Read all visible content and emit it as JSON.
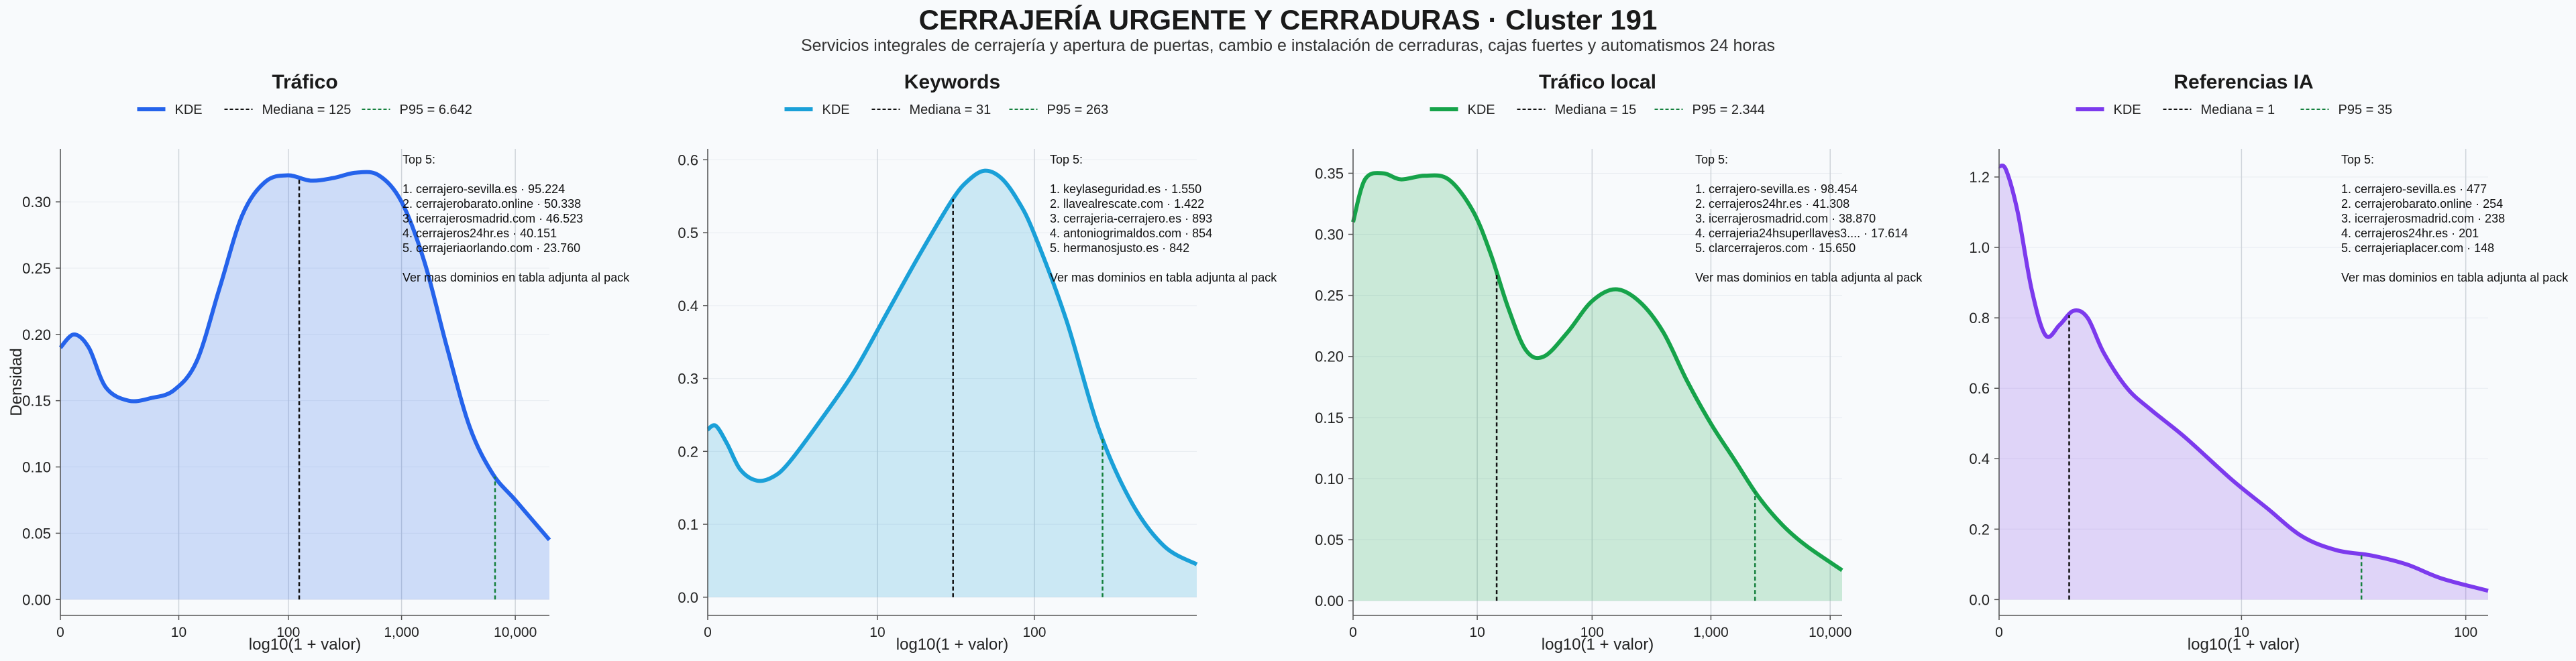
{
  "header": {
    "title": "CERRAJERÍA URGENTE Y CERRADURAS · Cluster 191",
    "subtitle": "Servicios integrales de cerrajería y apertura de puertas, cambio e instalación de cerraduras, cajas fuertes y automatismos 24 horas"
  },
  "colors": {
    "trafico": "#2563eb",
    "keywords": "#1aa0d8",
    "trafico_local": "#16a34a",
    "referencias_ia": "#7c3aed",
    "mediana": "#111111",
    "p95": "#15803d"
  },
  "chart_data": [
    {
      "type": "area",
      "title": "Tráfico",
      "xlabel": "log10(1 + valor)",
      "ylabel": "Densidad",
      "xscale": "log10(1+x)",
      "xlim": [
        0,
        4.3
      ],
      "ylim": [
        -0.012,
        0.34
      ],
      "yticks": [
        0.0,
        0.05,
        0.1,
        0.15,
        0.2,
        0.25,
        0.3
      ],
      "ytick_labels": [
        "0.00",
        "0.05",
        "0.10",
        "0.15",
        "0.20",
        "0.25",
        "0.30"
      ],
      "xticks": [
        0,
        1.041,
        2.004,
        3.0,
        4.0
      ],
      "xtick_labels": [
        "0",
        "10",
        "100",
        "1,000",
        "10,000"
      ],
      "grid": "vertical",
      "legend": {
        "placement": "top",
        "kde": "KDE",
        "mediana": "Mediana = 125",
        "p95": "P95 = 6.642"
      },
      "series": [
        {
          "name": "KDE",
          "x": [
            0,
            0.12,
            0.25,
            0.4,
            0.6,
            0.8,
            1.0,
            1.2,
            1.4,
            1.6,
            1.8,
            2.0,
            2.2,
            2.4,
            2.6,
            2.8,
            3.0,
            3.2,
            3.4,
            3.6,
            3.8,
            4.0,
            4.3
          ],
          "y": [
            0.19,
            0.2,
            0.19,
            0.16,
            0.15,
            0.152,
            0.158,
            0.18,
            0.235,
            0.29,
            0.315,
            0.32,
            0.316,
            0.318,
            0.322,
            0.32,
            0.3,
            0.255,
            0.19,
            0.13,
            0.095,
            0.075,
            0.045
          ]
        }
      ],
      "mediana_x": 2.1,
      "p95_x": 3.822,
      "top": {
        "title": "Top 5:",
        "items": [
          "1. cerrajero-sevilla.es · 95.224",
          "2. cerrajerobarato.online · 50.338",
          "3. icerrajerosmadrid.com · 46.523",
          "4. cerrajeros24hr.es · 40.151",
          "5. cerrajeriaorlando.com · 23.760"
        ],
        "note": "Ver mas dominios en tabla adjunta al pack"
      }
    },
    {
      "type": "area",
      "title": "Keywords",
      "xlabel": "log10(1 + valor)",
      "ylabel": "",
      "xscale": "log10(1+x)",
      "xlim": [
        0,
        3.0
      ],
      "ylim": [
        -0.025,
        0.615
      ],
      "yticks": [
        0.0,
        0.1,
        0.2,
        0.3,
        0.4,
        0.5,
        0.6
      ],
      "ytick_labels": [
        "0.0",
        "0.1",
        "0.2",
        "0.3",
        "0.4",
        "0.5",
        "0.6"
      ],
      "xticks": [
        0,
        1.041,
        2.004
      ],
      "xtick_labels": [
        "0",
        "10",
        "100"
      ],
      "grid": "vertical",
      "legend": {
        "placement": "top",
        "kde": "KDE",
        "mediana": "Mediana = 31",
        "p95": "P95 = 263"
      },
      "series": [
        {
          "name": "KDE",
          "x": [
            0,
            0.05,
            0.12,
            0.2,
            0.3,
            0.4,
            0.5,
            0.7,
            0.9,
            1.1,
            1.3,
            1.5,
            1.6,
            1.7,
            1.8,
            1.9,
            2.0,
            2.2,
            2.4,
            2.6,
            2.8,
            3.0
          ],
          "y": [
            0.23,
            0.235,
            0.21,
            0.175,
            0.16,
            0.165,
            0.185,
            0.245,
            0.31,
            0.39,
            0.47,
            0.545,
            0.572,
            0.585,
            0.575,
            0.545,
            0.5,
            0.38,
            0.23,
            0.13,
            0.07,
            0.045
          ]
        }
      ],
      "mediana_x": 1.505,
      "p95_x": 2.422,
      "top": {
        "title": "Top 5:",
        "items": [
          "1. keylaseguridad.es · 1.550",
          "2. llavealrescate.com · 1.422",
          "3. cerrajeria-cerrajero.es · 893",
          "4. antoniogrimaldos.com · 854",
          "5. hermanosjusto.es · 842"
        ],
        "note": "Ver mas dominios en tabla adjunta al pack"
      }
    },
    {
      "type": "area",
      "title": "Tráfico local",
      "xlabel": "log10(1 + valor)",
      "ylabel": "",
      "xscale": "log10(1+x)",
      "xlim": [
        0,
        4.1
      ],
      "ylim": [
        -0.012,
        0.37
      ],
      "yticks": [
        0.0,
        0.05,
        0.1,
        0.15,
        0.2,
        0.25,
        0.3,
        0.35
      ],
      "ytick_labels": [
        "0.00",
        "0.05",
        "0.10",
        "0.15",
        "0.20",
        "0.25",
        "0.30",
        "0.35"
      ],
      "xticks": [
        0,
        1.041,
        2.004,
        3.0,
        4.0
      ],
      "xtick_labels": [
        "0",
        "10",
        "100",
        "1,000",
        "10,000"
      ],
      "grid": "vertical",
      "legend": {
        "placement": "top",
        "kde": "KDE",
        "mediana": "Mediana = 15",
        "p95": "P95 = 2.344"
      },
      "series": [
        {
          "name": "KDE",
          "x": [
            0,
            0.1,
            0.25,
            0.4,
            0.6,
            0.8,
            1.0,
            1.15,
            1.3,
            1.45,
            1.6,
            1.8,
            2.0,
            2.2,
            2.4,
            2.6,
            2.8,
            3.0,
            3.2,
            3.4,
            3.6,
            3.8,
            4.1
          ],
          "y": [
            0.31,
            0.345,
            0.35,
            0.345,
            0.348,
            0.345,
            0.32,
            0.285,
            0.24,
            0.205,
            0.2,
            0.22,
            0.245,
            0.255,
            0.245,
            0.22,
            0.18,
            0.145,
            0.115,
            0.085,
            0.062,
            0.045,
            0.025
          ]
        }
      ],
      "mediana_x": 1.204,
      "p95_x": 3.37,
      "top": {
        "title": "Top 5:",
        "items": [
          "1. cerrajero-sevilla.es · 98.454",
          "2. cerrajeros24hr.es · 41.308",
          "3. icerrajerosmadrid.com · 38.870",
          "4. cerrajeria24hsuperllaves3.... · 17.614",
          "5. clarcerrajeros.com · 15.650"
        ],
        "note": "Ver mas dominios en tabla adjunta al pack"
      }
    },
    {
      "type": "area",
      "title": "Referencias IA",
      "xlabel": "log10(1 + valor)",
      "ylabel": "",
      "xscale": "log10(1+x)",
      "xlim": [
        0,
        2.1
      ],
      "ylim": [
        -0.045,
        1.28
      ],
      "yticks": [
        0.0,
        0.2,
        0.4,
        0.6,
        0.8,
        1.0,
        1.2
      ],
      "ytick_labels": [
        "0.0",
        "0.2",
        "0.4",
        "0.6",
        "0.8",
        "1.0",
        "1.2"
      ],
      "xticks": [
        0,
        1.041,
        2.004
      ],
      "xtick_labels": [
        "0",
        "10",
        "100"
      ],
      "grid": "vertical",
      "legend": {
        "placement": "top",
        "kde": "KDE",
        "mediana": "Mediana = 1",
        "p95": "P95 = 35"
      },
      "series": [
        {
          "name": "KDE",
          "x": [
            0,
            0.03,
            0.08,
            0.14,
            0.2,
            0.26,
            0.32,
            0.38,
            0.45,
            0.55,
            0.65,
            0.8,
            1.0,
            1.15,
            1.3,
            1.45,
            1.6,
            1.75,
            1.9,
            2.1
          ],
          "y": [
            1.23,
            1.22,
            1.1,
            0.88,
            0.75,
            0.78,
            0.82,
            0.8,
            0.7,
            0.6,
            0.54,
            0.46,
            0.34,
            0.26,
            0.18,
            0.14,
            0.125,
            0.1,
            0.06,
            0.025
          ]
        }
      ],
      "mediana_x": 0.301,
      "p95_x": 1.556,
      "top": {
        "title": "Top 5:",
        "items": [
          "1. cerrajero-sevilla.es · 477",
          "2. cerrajerobarato.online · 254",
          "3. icerrajerosmadrid.com · 238",
          "4. cerrajeros24hr.es · 201",
          "5. cerrajeriaplacer.com · 148"
        ],
        "note": "Ver mas dominios en tabla adjunta al pack"
      }
    }
  ]
}
